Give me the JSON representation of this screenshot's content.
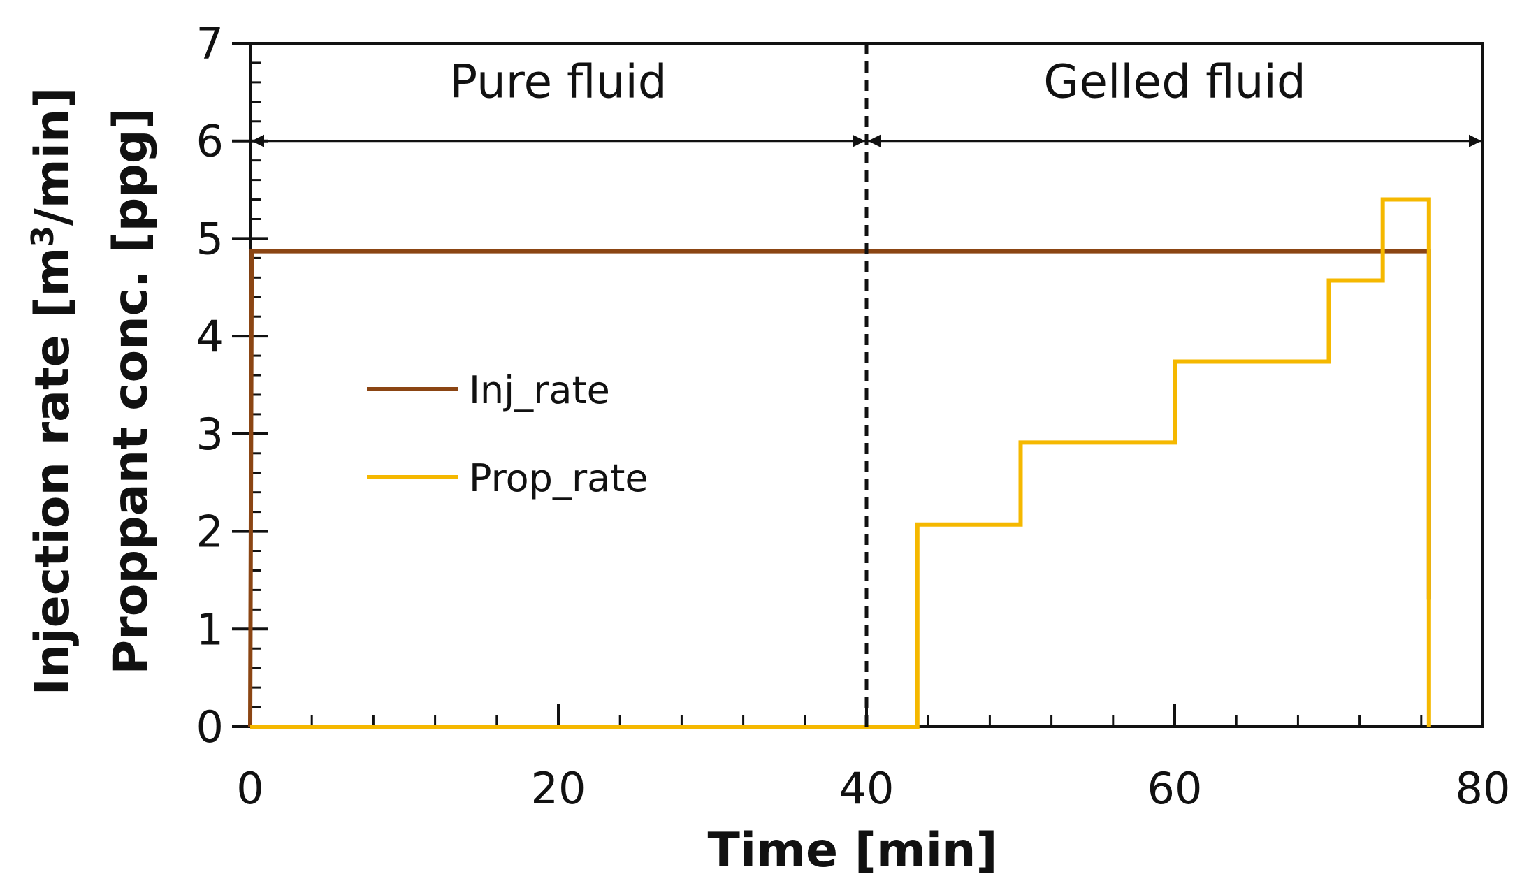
{
  "chart_data": {
    "type": "line",
    "title": "",
    "xlabel": "Time [min]",
    "ylabel_line1": "Injection rate [m",
    "ylabel_sup": "3",
    "ylabel_line1_end": "/min]",
    "ylabel_line2": "Proppant conc. [ppg]",
    "xlim": [
      0,
      80
    ],
    "ylim": [
      0,
      7
    ],
    "x_ticks": [
      0,
      20,
      40,
      60,
      80
    ],
    "x_tick_labels": [
      "0",
      "20",
      "40",
      "60",
      "80"
    ],
    "y_ticks": [
      0,
      1,
      2,
      3,
      4,
      5,
      6,
      7
    ],
    "y_tick_labels": [
      "0",
      "1",
      "2",
      "3",
      "4",
      "5",
      "6",
      "7"
    ],
    "x_minor_step": 4,
    "y_minor_step": 0.2,
    "grid": false,
    "legend_position": "center-left",
    "series": [
      {
        "name": "Inj_rate",
        "color": "#8B4513",
        "x": [
          0,
          0.1,
          76.5,
          76.5
        ],
        "y": [
          0,
          4.87,
          4.87,
          1.3
        ]
      },
      {
        "name": "Prop_rate",
        "color": "#F5B800",
        "x": [
          0,
          43.3,
          43.3,
          50,
          50,
          60,
          60,
          70,
          70,
          73.5,
          73.5,
          76.5,
          76.5
        ],
        "y": [
          0,
          0,
          2.07,
          2.07,
          2.91,
          2.91,
          3.74,
          3.74,
          4.57,
          4.57,
          5.4,
          5.4,
          0
        ]
      }
    ],
    "annotations": {
      "divider_x": 40,
      "arrow_y": 6,
      "regions": [
        {
          "label": "Pure fluid",
          "x_start": 0,
          "x_end": 40
        },
        {
          "label": "Gelled fluid",
          "x_start": 40,
          "x_end": 80
        }
      ]
    }
  }
}
